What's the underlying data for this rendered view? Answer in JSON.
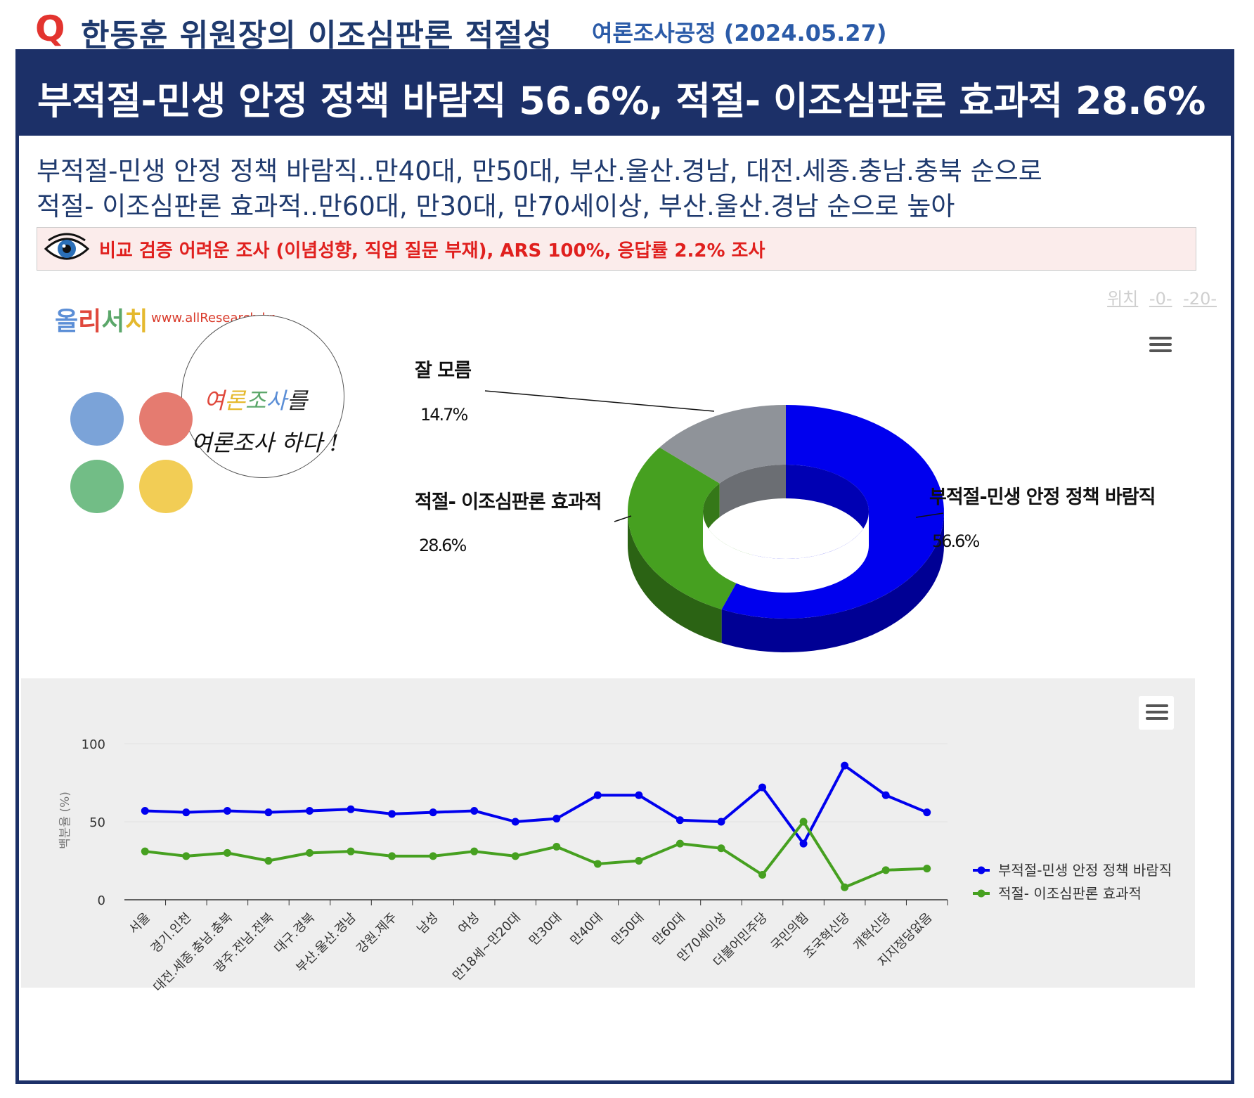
{
  "header": {
    "q_letter": "Q",
    "title": "한동훈 위원장의 이조심판론 적절성",
    "source": "여론조사공정 (2024.05.27)"
  },
  "banner": {
    "headline": "부적절-민생 안정 정책 바람직 56.6%, 적절- 이조심판론 효과적 28.6%"
  },
  "summary": {
    "line1": "부적절-민생 안정 정책 바람직..만40대, 만50대, 부산.울산.경남, 대전.세종.충남.충북 순으로",
    "line2": "적절- 이조심판론 효과적..만60대, 만30대, 만70세이상, 부산.울산.경남 순으로 높아"
  },
  "notice": {
    "icon": "eye-icon",
    "text": "비교 검증 어려운 조사 (이념성향, 직업 질문 부재), ARS 100%, 응답률 2.2% 조사"
  },
  "position_links": {
    "label": "위치",
    "link1": "-0-",
    "link2": "-20-"
  },
  "logo": {
    "title_chars": [
      "올",
      "리",
      "서",
      "치"
    ],
    "title_colors": [
      "#5b8ed6",
      "#e0483c",
      "#5ba76a",
      "#e5b92e"
    ],
    "url": "www.allResearch.kr",
    "dot_colors": [
      "#7ba3d8",
      "#e57b70",
      "#72bd86",
      "#f2cd55"
    ],
    "hand_chars": [
      "여",
      "론",
      "조",
      "사",
      "를"
    ],
    "hand_colors": [
      "#e0483c",
      "#e5b92e",
      "#5ba76a",
      "#5b8ed6",
      "#222222"
    ],
    "hand_line2": "여론조사 하다 !"
  },
  "chart_data": [
    {
      "type": "pie",
      "variant": "3d-donut",
      "slices": [
        {
          "label": "부적절-민생 안정 정책 바람직",
          "value": 56.6,
          "display": "56.6%",
          "color": "#0000ee"
        },
        {
          "label": "적절- 이조심판론 효과적",
          "value": 28.6,
          "display": "28.6%",
          "color": "#46a020"
        },
        {
          "label": "잘 모름",
          "value": 14.7,
          "display": "14.7%",
          "color": "#8f9399"
        }
      ]
    },
    {
      "type": "line",
      "ylabel": "백분율 (%)",
      "ylim": [
        0,
        100
      ],
      "yticks": [
        0,
        50,
        100
      ],
      "categories": [
        "서울",
        "경기.인천",
        "대전.세종.충남.충북",
        "광주.전남.전북",
        "대구.경북",
        "부산.울산.경남",
        "강원.제주",
        "남성",
        "여성",
        "만18세~만20대",
        "만30대",
        "만40대",
        "만50대",
        "만60대",
        "만70세이상",
        "더불어민주당",
        "국민의힘",
        "조국혁신당",
        "개혁신당",
        "지지정당없음"
      ],
      "series": [
        {
          "name": "부적절-민생 안정 정책 바람직",
          "color": "#0000ee",
          "values": [
            57,
            56,
            57,
            56,
            57,
            58,
            55,
            56,
            57,
            50,
            52,
            67,
            67,
            51,
            50,
            72,
            36,
            86,
            67,
            56
          ]
        },
        {
          "name": "적절- 이조심판론 효과적",
          "color": "#46a020",
          "values": [
            31,
            28,
            30,
            25,
            30,
            31,
            28,
            28,
            31,
            28,
            34,
            23,
            25,
            36,
            33,
            16,
            50,
            8,
            19,
            20
          ]
        }
      ],
      "legend": "right",
      "grid": true
    }
  ]
}
